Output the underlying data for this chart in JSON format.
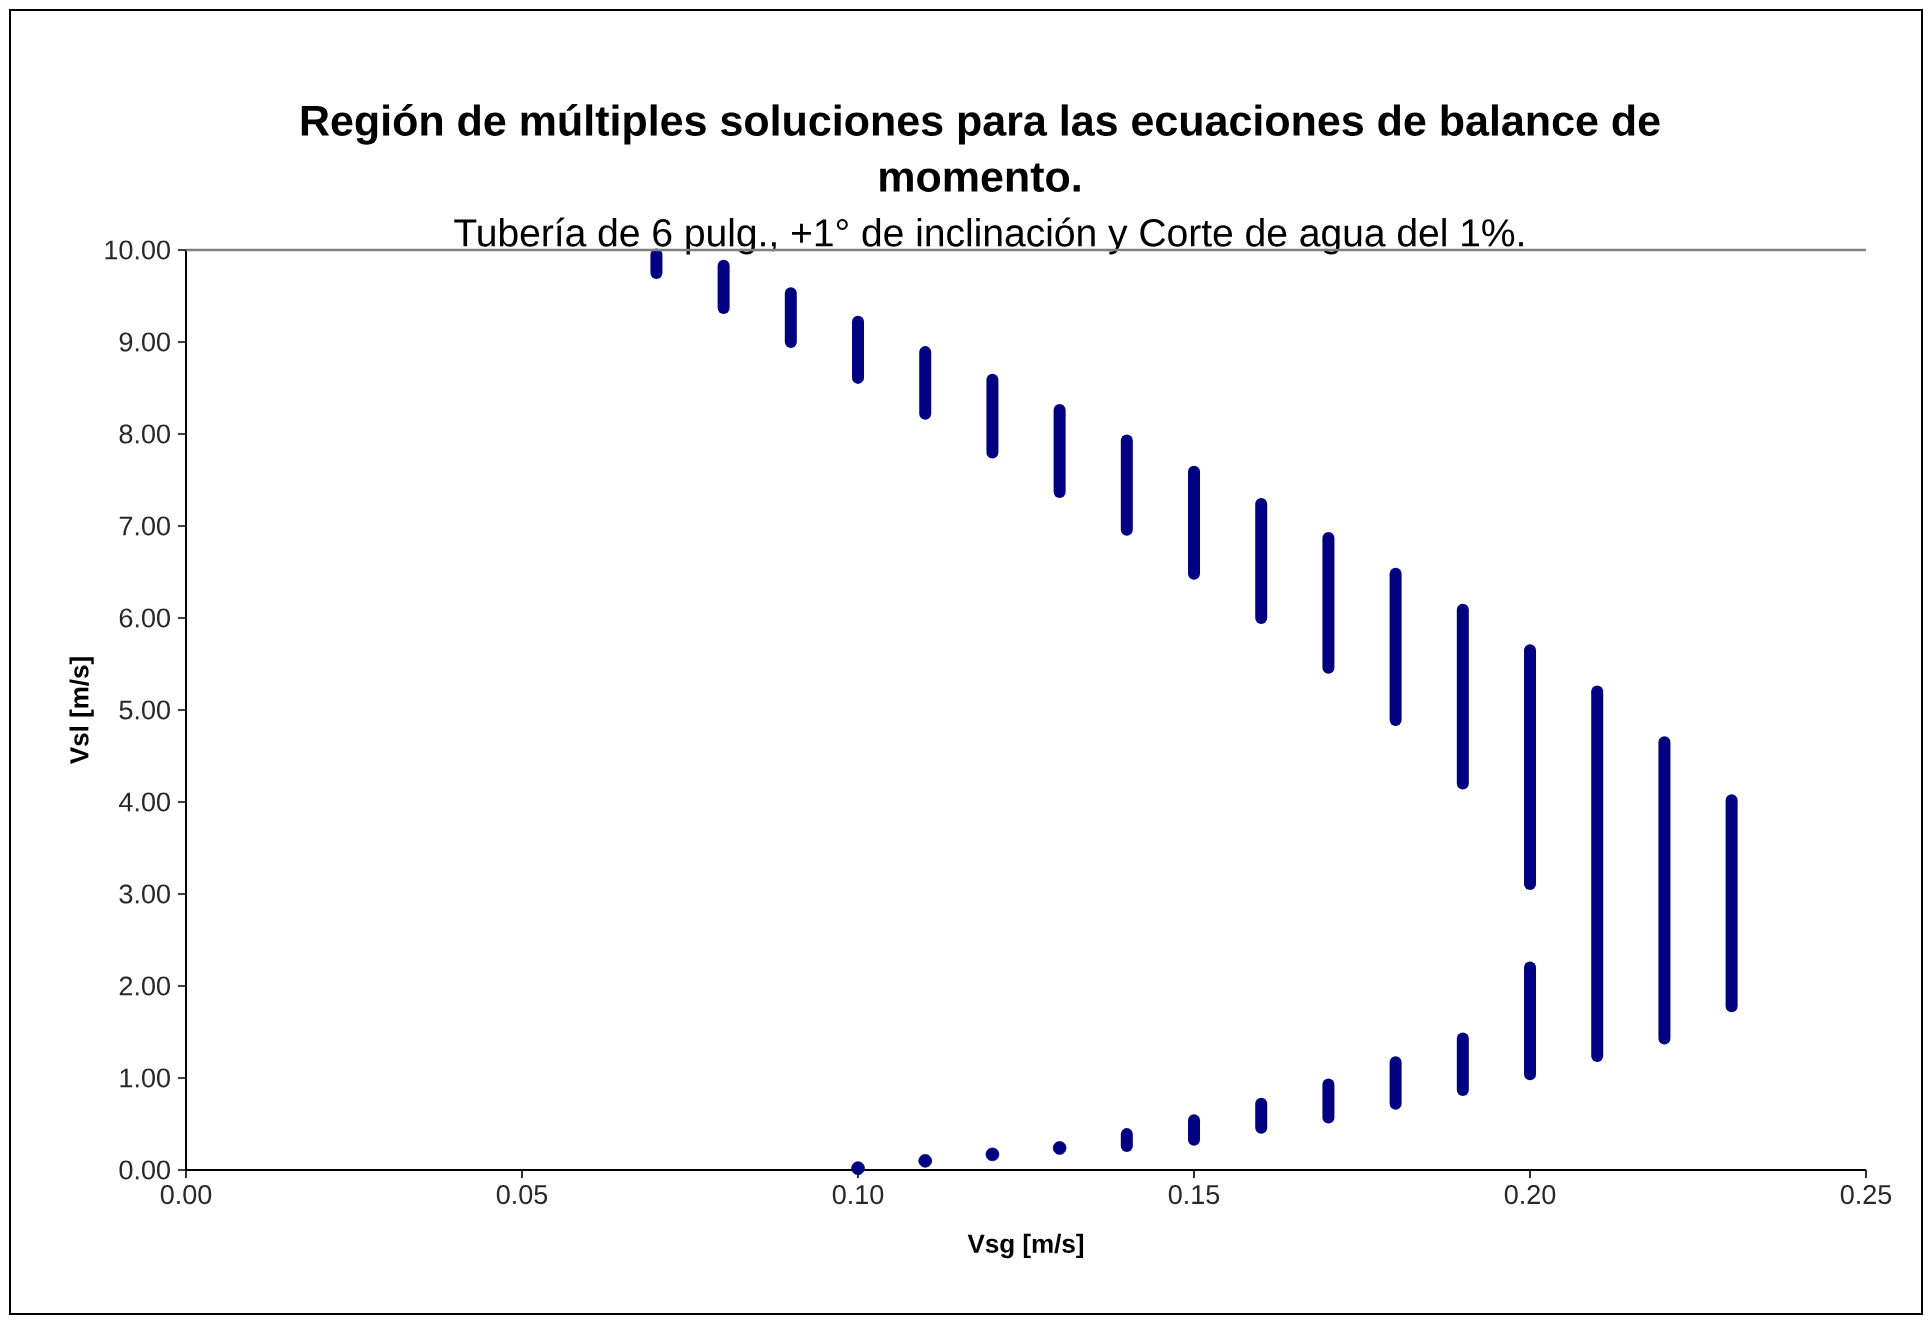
{
  "chart_data": {
    "type": "scatter",
    "title": "Región de múltiples soluciones para las ecuaciones de balance de momento.",
    "subtitle": "Tubería de 6 pulg., +1° de inclinación y Corte de agua del 1%.",
    "xlabel": "Vsg [m/s]",
    "ylabel": "Vsl [m/s]",
    "xlim": [
      0,
      0.25
    ],
    "ylim": [
      0,
      10
    ],
    "xticks": [
      {
        "value": 0,
        "label": "0.00"
      },
      {
        "value": 0.05,
        "label": "0.05"
      },
      {
        "value": 0.1,
        "label": "0.10"
      },
      {
        "value": 0.15,
        "label": "0.15"
      },
      {
        "value": 0.2,
        "label": "0.20"
      },
      {
        "value": 0.25,
        "label": "0.25"
      }
    ],
    "yticks": [
      {
        "value": 0,
        "label": "0.00"
      },
      {
        "value": 1,
        "label": "1.00"
      },
      {
        "value": 2,
        "label": "2.00"
      },
      {
        "value": 3,
        "label": "3.00"
      },
      {
        "value": 4,
        "label": "4.00"
      },
      {
        "value": 5,
        "label": "5.00"
      },
      {
        "value": 6,
        "label": "6.00"
      },
      {
        "value": 7,
        "label": "7.00"
      },
      {
        "value": 8,
        "label": "8.00"
      },
      {
        "value": 9,
        "label": "9.00"
      },
      {
        "value": 10,
        "label": "10.00"
      }
    ],
    "line_style": "solid",
    "series": [
      {
        "type": "line",
        "color": "#000080",
        "x": [
          0.07,
          0.07
        ],
        "values": [
          9.75,
          9.95
        ]
      },
      {
        "type": "line",
        "color": "#000080",
        "x": [
          0.08,
          0.08
        ],
        "values": [
          9.37,
          9.83
        ]
      },
      {
        "type": "line",
        "color": "#000080",
        "x": [
          0.09,
          0.09
        ],
        "values": [
          9.0,
          9.53
        ]
      },
      {
        "type": "line",
        "color": "#000080",
        "x": [
          0.1,
          0.1
        ],
        "values": [
          8.61,
          9.22
        ]
      },
      {
        "type": "line",
        "color": "#000080",
        "x": [
          0.11,
          0.11
        ],
        "values": [
          8.22,
          8.89
        ]
      },
      {
        "type": "line",
        "color": "#000080",
        "x": [
          0.12,
          0.12
        ],
        "values": [
          7.8,
          8.59
        ]
      },
      {
        "type": "line",
        "color": "#000080",
        "x": [
          0.13,
          0.13
        ],
        "values": [
          7.37,
          8.26
        ]
      },
      {
        "type": "line",
        "color": "#000080",
        "x": [
          0.14,
          0.14
        ],
        "values": [
          6.96,
          7.93
        ]
      },
      {
        "type": "line",
        "color": "#000080",
        "x": [
          0.15,
          0.15
        ],
        "values": [
          6.48,
          7.59
        ]
      },
      {
        "type": "line",
        "color": "#000080",
        "x": [
          0.16,
          0.16
        ],
        "values": [
          6.0,
          7.24
        ]
      },
      {
        "type": "line",
        "color": "#000080",
        "x": [
          0.17,
          0.17
        ],
        "values": [
          5.46,
          6.87
        ]
      },
      {
        "type": "line",
        "color": "#000080",
        "x": [
          0.18,
          0.18
        ],
        "values": [
          4.89,
          6.48
        ]
      },
      {
        "type": "line",
        "color": "#000080",
        "x": [
          0.19,
          0.19
        ],
        "values": [
          4.2,
          6.09
        ]
      },
      {
        "type": "line",
        "color": "#000080",
        "x": [
          0.2,
          0.2
        ],
        "values": [
          3.11,
          5.65
        ]
      },
      {
        "type": "line",
        "color": "#000080",
        "x": [
          0.21,
          0.21
        ],
        "values": [
          1.24,
          5.2
        ]
      },
      {
        "type": "line",
        "color": "#000080",
        "x": [
          0.22,
          0.22
        ],
        "values": [
          1.43,
          4.65
        ]
      },
      {
        "type": "line",
        "color": "#000080",
        "x": [
          0.23,
          0.23
        ],
        "values": [
          1.78,
          4.02
        ]
      },
      {
        "type": "scatter",
        "color": "#000080",
        "x": [
          0.1
        ],
        "values": [
          0.02
        ]
      },
      {
        "type": "scatter",
        "color": "#000080",
        "x": [
          0.11
        ],
        "values": [
          0.1
        ]
      },
      {
        "type": "scatter",
        "color": "#000080",
        "x": [
          0.12
        ],
        "values": [
          0.17
        ]
      },
      {
        "type": "scatter",
        "color": "#000080",
        "x": [
          0.13
        ],
        "values": [
          0.24
        ]
      },
      {
        "type": "line",
        "color": "#000080",
        "x": [
          0.14,
          0.14
        ],
        "values": [
          0.26,
          0.39
        ]
      },
      {
        "type": "line",
        "color": "#000080",
        "x": [
          0.15,
          0.15
        ],
        "values": [
          0.33,
          0.54
        ]
      },
      {
        "type": "line",
        "color": "#000080",
        "x": [
          0.16,
          0.16
        ],
        "values": [
          0.46,
          0.72
        ]
      },
      {
        "type": "line",
        "color": "#000080",
        "x": [
          0.17,
          0.17
        ],
        "values": [
          0.57,
          0.93
        ]
      },
      {
        "type": "line",
        "color": "#000080",
        "x": [
          0.18,
          0.18
        ],
        "values": [
          0.72,
          1.17
        ]
      },
      {
        "type": "line",
        "color": "#000080",
        "x": [
          0.19,
          0.19
        ],
        "values": [
          0.87,
          1.43
        ]
      },
      {
        "type": "line",
        "color": "#000080",
        "x": [
          0.2,
          0.2
        ],
        "values": [
          1.04,
          2.2
        ]
      }
    ]
  }
}
